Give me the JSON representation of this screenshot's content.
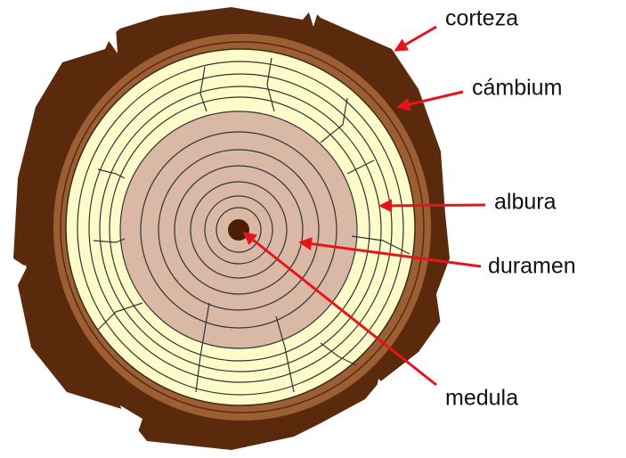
{
  "nodes": [
    {
      "label": "corteza"
    },
    {
      "label": "cámbium"
    },
    {
      "label": "albura"
    },
    {
      "label": "duramen"
    },
    {
      "label": "medula"
    }
  ]
}
